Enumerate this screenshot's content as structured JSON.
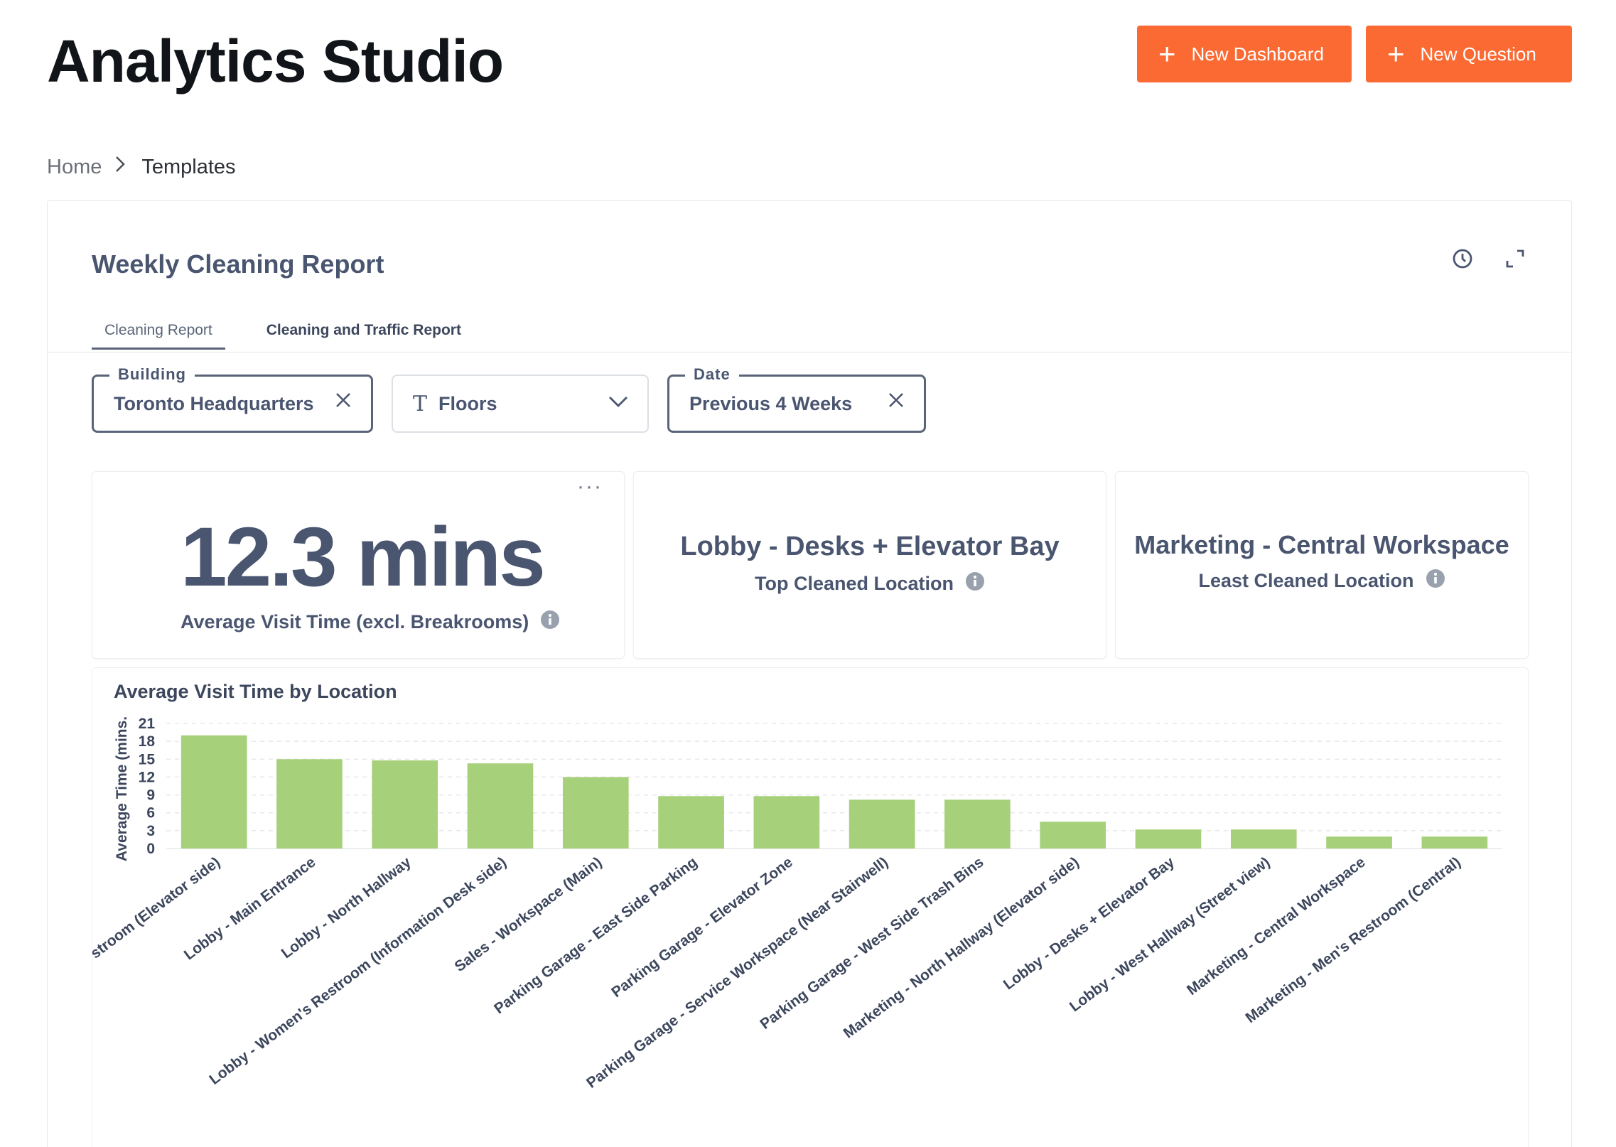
{
  "header": {
    "title": "Analytics Studio",
    "new_dashboard_label": "New Dashboard",
    "new_question_label": "New Question"
  },
  "breadcrumb": {
    "home": "Home",
    "current": "Templates"
  },
  "report": {
    "title": "Weekly Cleaning Report",
    "tabs": [
      {
        "label": "Cleaning Report",
        "active": true
      },
      {
        "label": "Cleaning and Traffic Report",
        "active": false
      }
    ]
  },
  "filters": {
    "building": {
      "legend": "Building",
      "value": "Toronto Headquarters"
    },
    "floors": {
      "placeholder": "Floors"
    },
    "date": {
      "legend": "Date",
      "value": "Previous 4 Weeks"
    }
  },
  "kpis": {
    "average_visit": {
      "value": "12.3 mins",
      "label": "Average Visit Time (excl. Breakrooms)"
    },
    "top_location": {
      "value": "Lobby - Desks + Elevator Bay",
      "label": "Top Cleaned Location"
    },
    "least_location": {
      "value": "Marketing - Central Workspace",
      "label": "Least Cleaned Location"
    }
  },
  "colors": {
    "accent": "#fb6a33",
    "bar": "#a7d07a",
    "text": "#4a5570"
  },
  "chart_data": {
    "type": "bar",
    "title": "Average Visit Time by Location",
    "ylabel": "Average Time (mins.",
    "xlabel": "",
    "ylim": [
      0,
      21
    ],
    "yticks": [
      0,
      3,
      6,
      9,
      12,
      15,
      18,
      21
    ],
    "grid": true,
    "categories": [
      "stroom (Elevator side)",
      "Lobby - Main Entrance",
      "Lobby - North Hallway",
      "Lobby - Women's Restroom (Information Desk side)",
      "Sales - Workspace (Main)",
      "Parking Garage - East Side Parking",
      "Parking Garage - Elevator Zone",
      "Parking Garage - Service Workspace (Near Stairwell)",
      "Parking Garage - West Side Trash Bins",
      "Marketing - North Hallway (Elevator side)",
      "Lobby - Desks + Elevator Bay",
      "Lobby - West Hallway (Street view)",
      "Marketing - Central Workspace",
      "Marketing - Men's Restroom (Central)"
    ],
    "values": [
      19,
      15,
      14.8,
      14.3,
      12,
      8.8,
      8.8,
      8.2,
      8.2,
      4.5,
      3.2,
      3.2,
      2,
      2
    ]
  }
}
